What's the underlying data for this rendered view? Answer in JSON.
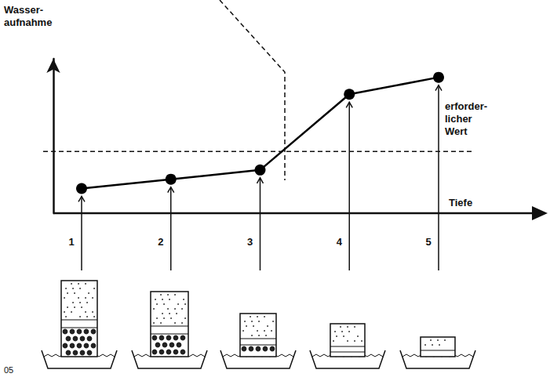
{
  "chart_data": {
    "type": "line",
    "figure_label": "05",
    "y_label": "Wasser-aufnahme",
    "x_label": "Tiefe",
    "categories": [
      "1",
      "2",
      "3",
      "4",
      "5"
    ],
    "values": [
      1.6,
      2.2,
      2.8,
      7.7,
      8.8
    ],
    "color": "#000000",
    "ylim": [
      0,
      10
    ],
    "reference_line": {
      "label": "erforder-licher Wert",
      "value": 4,
      "line_style": "dashed"
    },
    "tick_labels": "x",
    "grid": false,
    "marker": "circle",
    "line_style": "solid"
  }
}
